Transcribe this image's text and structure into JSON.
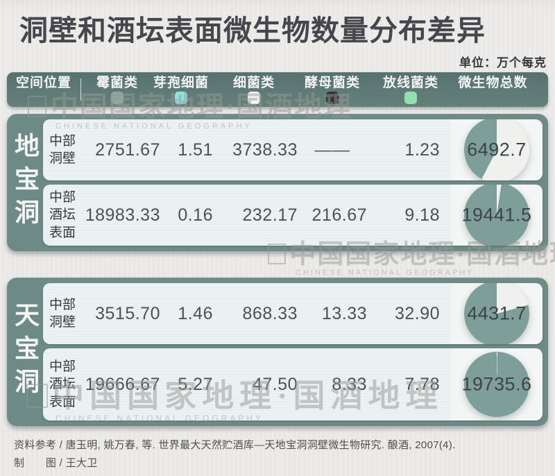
{
  "title": "洞壁和酒坛表面微生物数量分布差异",
  "unit_label": "单位：万个每克",
  "header": {
    "position_label": "空间位置",
    "columns": [
      {
        "label": "霉菌类",
        "swatch": "#8da8a3"
      },
      {
        "label": "芽孢细菌",
        "swatch": "#8fe5de"
      },
      {
        "label": "细菌类",
        "swatch": "#f7f8f5"
      },
      {
        "label": "酵母菌类",
        "swatch": "#343335"
      },
      {
        "label": "放线菌类",
        "swatch": "#93dfad"
      },
      {
        "label": "微生物总数",
        "swatch": null
      }
    ]
  },
  "sections": [
    {
      "name": "地宝洞",
      "rows": [
        {
          "location": "中部\n洞壁",
          "values": [
            "2751.67",
            "1.51",
            "3738.33",
            "——",
            "1.23"
          ],
          "total": "6492.7",
          "pie_teal_pct": 42.4
        },
        {
          "location": "中部\n酒坛\n表面",
          "values": [
            "18983.33",
            "0.16",
            "232.17",
            "216.67",
            "9.18"
          ],
          "total": "19441.5",
          "pie_teal_pct": 97.6
        }
      ]
    },
    {
      "name": "天宝洞",
      "rows": [
        {
          "location": "中部\n洞壁",
          "values": [
            "3515.70",
            "1.46",
            "868.33",
            "13.33",
            "32.90"
          ],
          "total": "4431.7",
          "pie_teal_pct": 79.3
        },
        {
          "location": "中部\n酒坛\n表面",
          "values": [
            "19666.67",
            "5.27",
            "47.50",
            "8.33",
            "7.78"
          ],
          "total": "19735.6",
          "pie_teal_pct": 99.7
        }
      ]
    }
  ],
  "watermarks": [
    {
      "cn": "中国国家地理·国酒地理",
      "en": "CHINESE NATIONAL GEOGRAPHY"
    },
    {
      "cn": "中国国家地理·国酒地理",
      "en": "CHINESE NATIONAL GEOGRAPHY"
    },
    {
      "cn": "中国国家地理·国酒地理",
      "en": "CHINESE NATIONAL GEOGRAPHY"
    }
  ],
  "footer": {
    "line1": "资料参考 / 唐玉明, 姚万春, 等. 世界最大天然贮酒库—天地宝洞洞壁微生物研究. 酿酒, 2007(4).",
    "line2": "制　　图 / 王大卫"
  },
  "colors": {
    "accent_teal": "#6d8a87",
    "header_bar": "#5e7976",
    "row_bg": "#e8eff0",
    "pie_panel_bg": "#f3f6f4",
    "pie_fill": "#7d9e99",
    "pie_rest": "#f0f1ef",
    "title_text": "#45474c",
    "number_text": "#4b5154",
    "watermark": "#979996"
  },
  "chart_data": {
    "type": "table",
    "title": "洞壁和酒坛表面微生物数量分布差异",
    "unit": "万个每克",
    "columns": [
      "空间位置",
      "霉菌类",
      "芽孢细菌",
      "细菌类",
      "酵母菌类",
      "放线菌类",
      "微生物总数"
    ],
    "groups": [
      {
        "group": "地宝洞",
        "rows": [
          {
            "location": "中部洞壁",
            "霉菌类": 2751.67,
            "芽孢细菌": 1.51,
            "细菌类": 3738.33,
            "酵母菌类": null,
            "放线菌类": 1.23,
            "微生物总数": 6492.7,
            "pie_mold_share_pct": 42.4
          },
          {
            "location": "中部酒坛表面",
            "霉菌类": 18983.33,
            "芽孢细菌": 0.16,
            "细菌类": 232.17,
            "酵母菌类": 216.67,
            "放线菌类": 9.18,
            "微生物总数": 19441.5,
            "pie_mold_share_pct": 97.6
          }
        ]
      },
      {
        "group": "天宝洞",
        "rows": [
          {
            "location": "中部洞壁",
            "霉菌类": 3515.7,
            "芽孢细菌": 1.46,
            "细菌类": 868.33,
            "酵母菌类": 13.33,
            "放线菌类": 32.9,
            "微生物总数": 4431.7,
            "pie_mold_share_pct": 79.3
          },
          {
            "location": "中部酒坛表面",
            "霉菌类": 19666.67,
            "芽孢细菌": 5.27,
            "细菌类": 47.5,
            "酵母菌类": 8.33,
            "放线菌类": 7.78,
            "微生物总数": 19735.6,
            "pie_mold_share_pct": 99.7
          }
        ]
      }
    ],
    "legend_position": "top header bar",
    "notes": "每行右侧饼图以霉菌类占微生物总数的比例着色（青灰色=霉菌类，白色=其余类别之和）"
  }
}
